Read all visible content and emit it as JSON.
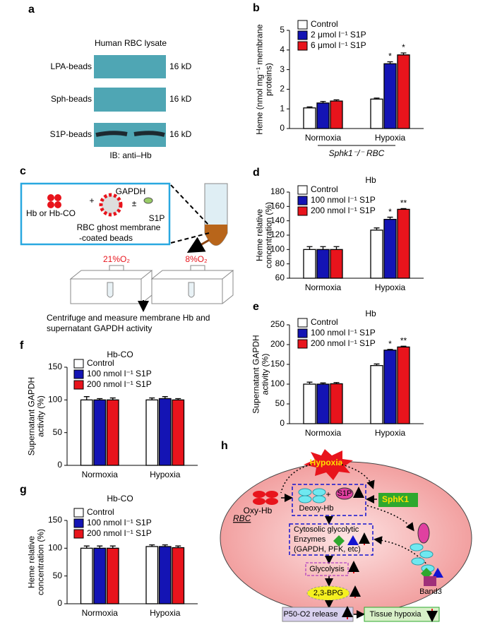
{
  "panel_labels": [
    "a",
    "b",
    "c",
    "d",
    "e",
    "f",
    "g",
    "h"
  ],
  "blot": {
    "title": "Human RBC lysate",
    "rows": [
      {
        "label": "LPA-beads",
        "size": "16 kD"
      },
      {
        "label": "Sph-beads",
        "size": "16 kD"
      },
      {
        "label": "S1P-beads",
        "size": "16 kD"
      }
    ],
    "caption": "IB: anti–Hb"
  },
  "schematic": {
    "gapdh": "GAPDH",
    "hb": "Hb or Hb-CO",
    "plus": "+",
    "pm": "±",
    "s1p": "S1P",
    "ghost": [
      "RBC ghost membrane",
      "-coated beads"
    ],
    "o2": [
      "21%O₂",
      "8%O₂"
    ],
    "caption": [
      "Centrifuge and measure membrane Hb and",
      "supernatant GAPDH activity"
    ]
  },
  "chart_data": [
    {
      "type": "bar",
      "ylabel": [
        "Heme (nmol mg⁻¹ membrane",
        "proteins)"
      ],
      "xlabel": "Sphk1⁻/⁻ RBC",
      "categories": [
        "Normoxia",
        "Hypoxia"
      ],
      "ylim": [
        0,
        5
      ],
      "yticks": [
        0,
        1,
        2,
        3,
        4,
        5
      ],
      "series": [
        {
          "name": "Control",
          "color": "#ffffff",
          "values": [
            1.05,
            1.5
          ],
          "errors": [
            0.05,
            0.05
          ],
          "significance": [
            null,
            null
          ]
        },
        {
          "name": "2 μmol l⁻¹ S1P",
          "color": "#1414b4",
          "values": [
            1.3,
            3.3
          ],
          "errors": [
            0.08,
            0.1
          ],
          "significance": [
            null,
            "*"
          ]
        },
        {
          "name": "6 μmol l⁻¹ S1P",
          "color": "#e8141c",
          "values": [
            1.4,
            3.75
          ],
          "errors": [
            0.06,
            0.1
          ],
          "significance": [
            null,
            "*"
          ]
        }
      ]
    },
    {
      "type": "bar",
      "title": "Hb",
      "ylabel": [
        "Heme relative",
        "concentration (%)"
      ],
      "categories": [
        "Normoxia",
        "Hypoxia"
      ],
      "ylim": [
        60,
        180
      ],
      "yticks": [
        60,
        80,
        100,
        120,
        140,
        160,
        180
      ],
      "series": [
        {
          "name": "Control",
          "color": "#ffffff",
          "values": [
            100,
            127
          ],
          "errors": [
            4,
            3
          ],
          "significance": [
            null,
            null
          ]
        },
        {
          "name": "100 nmol l⁻¹ S1P",
          "color": "#1414b4",
          "values": [
            100,
            142
          ],
          "errors": [
            4,
            3
          ],
          "significance": [
            null,
            "*"
          ]
        },
        {
          "name": "200 nmol l⁻¹ S1P",
          "color": "#e8141c",
          "values": [
            100,
            156
          ],
          "errors": [
            4,
            1
          ],
          "significance": [
            null,
            "**"
          ]
        }
      ]
    },
    {
      "type": "bar",
      "title": "Hb",
      "ylabel": [
        "Supernatant GAPDH",
        "activity (%)"
      ],
      "categories": [
        "Normoxia",
        "Hypoxia"
      ],
      "ylim": [
        0,
        250
      ],
      "yticks": [
        0,
        50,
        100,
        150,
        200,
        250
      ],
      "series": [
        {
          "name": "Control",
          "color": "#ffffff",
          "values": [
            100,
            147
          ],
          "errors": [
            5,
            4
          ],
          "significance": [
            null,
            null
          ]
        },
        {
          "name": "100 nmol l⁻¹ S1P",
          "color": "#1414b4",
          "values": [
            100,
            186
          ],
          "errors": [
            3,
            2
          ],
          "significance": [
            null,
            "*"
          ]
        },
        {
          "name": "200 nmol l⁻¹ S1P",
          "color": "#e8141c",
          "values": [
            101,
            194
          ],
          "errors": [
            3,
            2
          ],
          "significance": [
            null,
            "**"
          ]
        }
      ]
    },
    {
      "type": "bar",
      "title": "Hb-CO",
      "ylabel": [
        "Supernatant GAPDH",
        "activity (%)"
      ],
      "categories": [
        "Normoxia",
        "Hypoxia"
      ],
      "ylim": [
        0,
        150
      ],
      "yticks": [
        0,
        50,
        100,
        150
      ],
      "series": [
        {
          "name": "Control",
          "color": "#ffffff",
          "values": [
            100,
            100
          ],
          "errors": [
            5,
            3
          ],
          "significance": [
            null,
            null
          ]
        },
        {
          "name": "100 nmol l⁻¹ S1P",
          "color": "#1414b4",
          "values": [
            100,
            102
          ],
          "errors": [
            2,
            3
          ],
          "significance": [
            null,
            null
          ]
        },
        {
          "name": "200 nmol l⁻¹ S1P",
          "color": "#e8141c",
          "values": [
            100,
            100
          ],
          "errors": [
            3,
            2
          ],
          "significance": [
            null,
            null
          ]
        }
      ]
    },
    {
      "type": "bar",
      "title": "Hb-CO",
      "ylabel": [
        "Heme relative",
        "concentration (%)"
      ],
      "categories": [
        "Normoxia",
        "Hypoxia"
      ],
      "ylim": [
        0,
        150
      ],
      "yticks": [
        0,
        50,
        100,
        150
      ],
      "series": [
        {
          "name": "Control",
          "color": "#ffffff",
          "values": [
            100,
            103
          ],
          "errors": [
            4,
            3
          ],
          "significance": [
            null,
            null
          ]
        },
        {
          "name": "100 nmol l⁻¹ S1P",
          "color": "#1414b4",
          "values": [
            100,
            103
          ],
          "errors": [
            4,
            3
          ],
          "significance": [
            null,
            null
          ]
        },
        {
          "name": "200 nmol l⁻¹ S1P",
          "color": "#e8141c",
          "values": [
            100,
            101
          ],
          "errors": [
            4,
            3
          ],
          "significance": [
            null,
            null
          ]
        }
      ]
    }
  ],
  "diagram": {
    "hypoxia": "Hypoxia",
    "oxy_hb": "Oxy-Hb",
    "deoxy_hb": "Deoxy-Hb",
    "plus": "+",
    "s1p": "S1P",
    "sphk1": "SphK1",
    "rbc": "RBC",
    "enzymes": [
      "Cytosolic glycolytic",
      "Enzymes",
      "(GAPDH, PFK, etc)"
    ],
    "glycolysis": "Glycolysis",
    "bpg": "2,3-BPG",
    "p50": "P50-O2 release",
    "tissue": "Tissue hypoxia",
    "band3": "Band3"
  }
}
